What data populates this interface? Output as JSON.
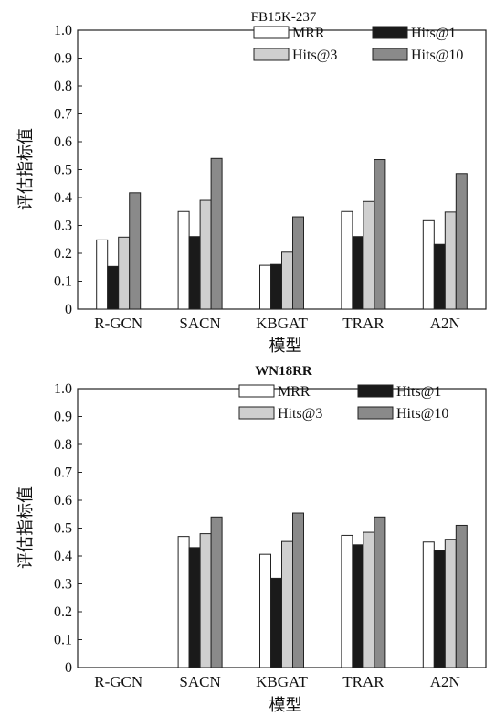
{
  "chart_data": [
    {
      "type": "bar",
      "title": "FB15K-237",
      "xlabel": "模型",
      "ylabel": "评估指标值",
      "ylim": [
        0,
        1.0
      ],
      "yticks": [
        "0",
        "0.1",
        "0.2",
        "0.3",
        "0.4",
        "0.5",
        "0.6",
        "0.7",
        "0.8",
        "0.9",
        "1.0"
      ],
      "categories": [
        "R-GCN",
        "SACN",
        "KBGAT",
        "TRAR",
        "A2N"
      ],
      "legend_position": "top-right",
      "series": [
        {
          "name": "MRR",
          "color": "#ffffff",
          "values": [
            0.248,
            0.35,
            0.157,
            0.35,
            0.317
          ]
        },
        {
          "name": "Hits@1",
          "color": "#1a1a1a",
          "values": [
            0.153,
            0.26,
            0.16,
            0.26,
            0.232
          ]
        },
        {
          "name": "Hits@3",
          "color": "#cfcfcf",
          "values": [
            0.258,
            0.39,
            0.204,
            0.386,
            0.348
          ]
        },
        {
          "name": "Hits@10",
          "color": "#8a8a8a",
          "values": [
            0.417,
            0.54,
            0.331,
            0.536,
            0.486
          ]
        }
      ]
    },
    {
      "type": "bar",
      "title": "WN18RR",
      "xlabel": "模型",
      "ylabel": "评估指标值",
      "ylim": [
        0,
        1.0
      ],
      "yticks": [
        "0",
        "0.1",
        "0.2",
        "0.3",
        "0.4",
        "0.5",
        "0.6",
        "0.7",
        "0.8",
        "0.9",
        "1.0"
      ],
      "categories": [
        "R-GCN",
        "SACN",
        "KBGAT",
        "TRAR",
        "A2N"
      ],
      "legend_position": "top-right",
      "series": [
        {
          "name": "MRR",
          "color": "#ffffff",
          "values": [
            0,
            0.47,
            0.406,
            0.474,
            0.45
          ]
        },
        {
          "name": "Hits@1",
          "color": "#1a1a1a",
          "values": [
            0,
            0.43,
            0.32,
            0.44,
            0.42
          ]
        },
        {
          "name": "Hits@3",
          "color": "#cfcfcf",
          "values": [
            0,
            0.48,
            0.452,
            0.485,
            0.46
          ]
        },
        {
          "name": "Hits@10",
          "color": "#8a8a8a",
          "values": [
            0,
            0.54,
            0.554,
            0.54,
            0.51
          ]
        }
      ]
    }
  ]
}
